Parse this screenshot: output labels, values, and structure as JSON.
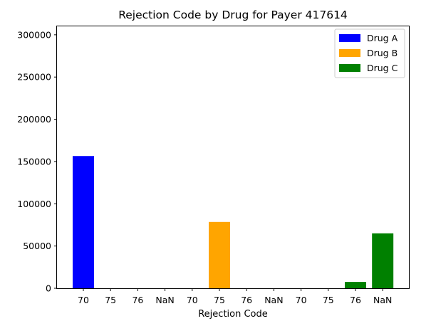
{
  "chart_data": {
    "type": "bar",
    "title": "Rejection Code by Drug for Payer 417614",
    "xlabel": "Rejection Code",
    "ylabel": "",
    "ylim": [
      0,
      310000
    ],
    "yticks": [
      0,
      50000,
      100000,
      150000,
      200000,
      250000,
      300000
    ],
    "categories": [
      "70",
      "75",
      "76",
      "NaN",
      "70",
      "75",
      "76",
      "NaN",
      "70",
      "75",
      "76",
      "NaN"
    ],
    "values": [
      156500,
      0,
      0,
      0,
      0,
      78500,
      0,
      0,
      0,
      0,
      7500,
      65000
    ],
    "bar_groups": [
      "Drug A",
      "Drug A",
      "Drug A",
      "Drug A",
      "Drug B",
      "Drug B",
      "Drug B",
      "Drug B",
      "Drug C",
      "Drug C",
      "Drug C",
      "Drug C"
    ],
    "legend_position": "top-right",
    "grid": false,
    "series": [
      {
        "name": "Drug A",
        "color": "#0000ff"
      },
      {
        "name": "Drug B",
        "color": "#ffa500"
      },
      {
        "name": "Drug C",
        "color": "#008000"
      }
    ]
  }
}
